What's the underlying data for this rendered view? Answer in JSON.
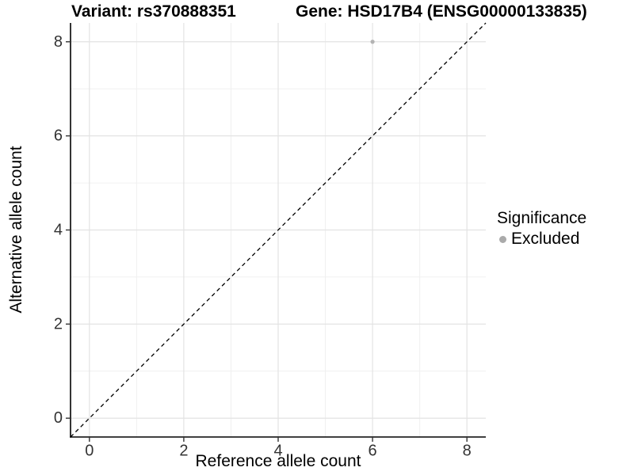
{
  "header": {
    "variant_title": "Variant: rs370888351",
    "gene_title": "Gene: HSD17B4 (ENSG00000133835)"
  },
  "legend": {
    "title": "Significance",
    "items": [
      {
        "label": "Excluded",
        "color": "#aaaaaa"
      }
    ]
  },
  "chart_data": {
    "type": "scatter",
    "title": "Variant: rs370888351 | Gene: HSD17B4 (ENSG00000133835)",
    "xlabel": "Reference allele count",
    "ylabel": "Alternative allele count",
    "xlim": [
      -0.4,
      8.4
    ],
    "ylim": [
      -0.4,
      8.4
    ],
    "x_ticks": [
      0,
      2,
      4,
      6,
      8
    ],
    "y_ticks": [
      0,
      2,
      4,
      6,
      8
    ],
    "x_minor_ticks": [
      1,
      3,
      5,
      7
    ],
    "y_minor_ticks": [
      1,
      3,
      5,
      7
    ],
    "grid": "major and minor gridlines on white background",
    "legend_position": "right",
    "series": [
      {
        "name": "Excluded",
        "color": "#b3b3b3",
        "points": [
          {
            "x": 6,
            "y": 8
          }
        ]
      }
    ],
    "reference_line": {
      "type": "identity y=x",
      "style": "dashed",
      "color": "#000000",
      "from": [
        -0.4,
        -0.4
      ],
      "to": [
        8.4,
        8.4
      ]
    }
  },
  "colors": {
    "background": "#ffffff",
    "grid_major": "#e3e3e3",
    "grid_minor": "#f0f0f0",
    "axis_line": "#000000",
    "tick_mark": "#333333",
    "tick_label": "#333333",
    "point": "#b3b3b3"
  }
}
